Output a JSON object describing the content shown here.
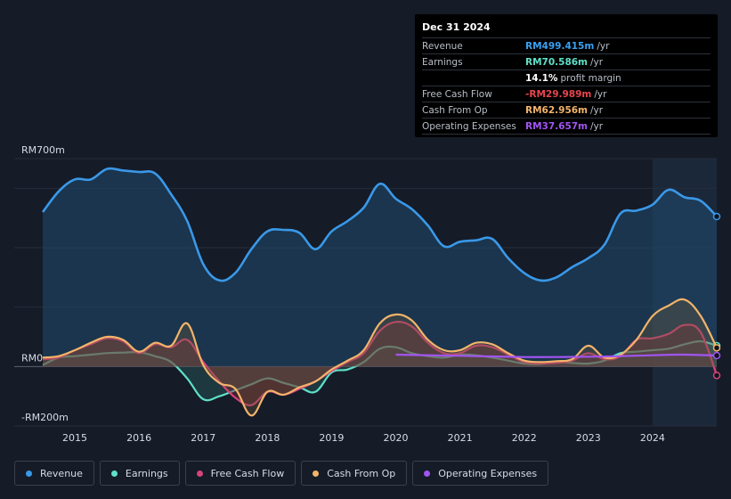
{
  "tooltip": {
    "date": "Dec 31 2024",
    "rows": [
      {
        "label": "Revenue",
        "value": "RM499.415m",
        "unit": "/yr",
        "color": "#3aa0f0"
      },
      {
        "label": "Earnings",
        "value": "RM70.586m",
        "unit": "/yr",
        "color": "#5fe0c8"
      },
      {
        "label": "",
        "value": "14.1%",
        "unit": "profit margin",
        "color": "#ffffff"
      },
      {
        "label": "Free Cash Flow",
        "value": "-RM29.989m",
        "unit": "/yr",
        "color": "#e8454f"
      },
      {
        "label": "Cash From Op",
        "value": "RM62.956m",
        "unit": "/yr",
        "color": "#f2b46a"
      },
      {
        "label": "Operating Expenses",
        "value": "RM37.657m",
        "unit": "/yr",
        "color": "#a155f0"
      }
    ]
  },
  "legend": [
    {
      "label": "Revenue",
      "color": "#3a98e8"
    },
    {
      "label": "Earnings",
      "color": "#5fe0c8"
    },
    {
      "label": "Free Cash Flow",
      "color": "#d4457a"
    },
    {
      "label": "Cash From Op",
      "color": "#f2b46a"
    },
    {
      "label": "Operating Expenses",
      "color": "#a155f0"
    }
  ],
  "chart_data": {
    "type": "area",
    "title": "",
    "ylim": [
      -200,
      700
    ],
    "y_tick_labels": [
      "RM700m",
      "RM0",
      "-RM200m"
    ],
    "y_ticks": [
      700,
      0,
      -200
    ],
    "x_tick_labels": [
      "2015",
      "2016",
      "2017",
      "2018",
      "2019",
      "2020",
      "2021",
      "2022",
      "2023",
      "2024"
    ],
    "x_ticks": [
      2015,
      2016,
      2017,
      2018,
      2019,
      2020,
      2021,
      2022,
      2023,
      2024
    ],
    "xlim": [
      2014.5,
      2025.0
    ],
    "forecast_start": 2024.0,
    "series": [
      {
        "name": "Revenue",
        "color": "#3a98e8",
        "x": [
          2014.5,
          2014.75,
          2015.0,
          2015.25,
          2015.5,
          2015.75,
          2016.0,
          2016.25,
          2016.5,
          2016.75,
          2017.0,
          2017.25,
          2017.5,
          2017.75,
          2018.0,
          2018.25,
          2018.5,
          2018.75,
          2019.0,
          2019.25,
          2019.5,
          2019.75,
          2020.0,
          2020.25,
          2020.5,
          2020.75,
          2021.0,
          2021.25,
          2021.5,
          2021.75,
          2022.0,
          2022.25,
          2022.5,
          2022.75,
          2023.0,
          2023.25,
          2023.5,
          2023.75,
          2024.0,
          2024.25,
          2024.5,
          2024.75,
          2025.0
        ],
        "values": [
          520,
          590,
          630,
          630,
          665,
          660,
          655,
          650,
          580,
          490,
          345,
          290,
          315,
          395,
          455,
          460,
          450,
          395,
          455,
          490,
          535,
          615,
          565,
          530,
          475,
          405,
          420,
          425,
          430,
          365,
          315,
          290,
          300,
          335,
          365,
          410,
          515,
          525,
          545,
          595,
          570,
          558,
          505
        ]
      },
      {
        "name": "Earnings",
        "color": "#5fe0c8",
        "x": [
          2014.5,
          2014.75,
          2015.0,
          2015.25,
          2015.5,
          2015.75,
          2016.0,
          2016.25,
          2016.5,
          2016.75,
          2017.0,
          2017.25,
          2017.5,
          2017.75,
          2018.0,
          2018.25,
          2018.5,
          2018.75,
          2019.0,
          2019.25,
          2019.5,
          2019.75,
          2020.0,
          2020.25,
          2020.5,
          2020.75,
          2021.0,
          2021.25,
          2021.5,
          2021.75,
          2022.0,
          2022.25,
          2022.5,
          2022.75,
          2023.0,
          2023.25,
          2023.5,
          2023.75,
          2024.0,
          2024.25,
          2024.5,
          2024.75,
          2025.0
        ],
        "values": [
          5,
          30,
          35,
          40,
          45,
          47,
          48,
          35,
          15,
          -40,
          -110,
          -100,
          -80,
          -60,
          -40,
          -55,
          -70,
          -85,
          -20,
          -10,
          15,
          60,
          65,
          45,
          35,
          30,
          40,
          38,
          30,
          20,
          10,
          8,
          15,
          12,
          10,
          20,
          45,
          50,
          55,
          60,
          75,
          85,
          70
        ]
      },
      {
        "name": "Free Cash Flow",
        "color": "#d4457a",
        "x": [
          2014.5,
          2014.75,
          2015.0,
          2015.25,
          2015.5,
          2015.75,
          2016.0,
          2016.25,
          2016.5,
          2016.75,
          2017.0,
          2017.25,
          2017.5,
          2017.75,
          2018.0,
          2018.25,
          2018.5,
          2018.75,
          2019.0,
          2019.25,
          2019.5,
          2019.75,
          2020.0,
          2020.25,
          2020.5,
          2020.75,
          2021.0,
          2021.25,
          2021.5,
          2021.75,
          2022.0,
          2022.25,
          2022.5,
          2022.75,
          2023.0,
          2023.25,
          2023.5,
          2023.75,
          2024.0,
          2024.25,
          2024.5,
          2024.75,
          2025.0
        ],
        "values": [
          25,
          30,
          55,
          75,
          95,
          85,
          45,
          75,
          65,
          90,
          15,
          -50,
          -105,
          -130,
          -85,
          -95,
          -75,
          -50,
          -15,
          15,
          45,
          120,
          150,
          135,
          80,
          45,
          45,
          70,
          65,
          40,
          15,
          10,
          12,
          20,
          45,
          25,
          35,
          90,
          95,
          110,
          140,
          115,
          -30
        ]
      },
      {
        "name": "Cash From Op",
        "color": "#f2b46a",
        "x": [
          2014.5,
          2014.75,
          2015.0,
          2015.25,
          2015.5,
          2015.75,
          2016.0,
          2016.25,
          2016.5,
          2016.75,
          2017.0,
          2017.25,
          2017.5,
          2017.75,
          2018.0,
          2018.25,
          2018.5,
          2018.75,
          2019.0,
          2019.25,
          2019.5,
          2019.75,
          2020.0,
          2020.25,
          2020.5,
          2020.75,
          2021.0,
          2021.25,
          2021.5,
          2021.75,
          2022.0,
          2022.25,
          2022.5,
          2022.75,
          2023.0,
          2023.25,
          2023.5,
          2023.75,
          2024.0,
          2024.25,
          2024.5,
          2024.75,
          2025.0
        ],
        "values": [
          30,
          35,
          55,
          80,
          100,
          90,
          50,
          80,
          70,
          145,
          5,
          -55,
          -75,
          -165,
          -85,
          -95,
          -70,
          -50,
          -10,
          20,
          55,
          145,
          175,
          155,
          90,
          55,
          55,
          80,
          75,
          45,
          20,
          15,
          18,
          25,
          70,
          30,
          40,
          90,
          170,
          205,
          225,
          170,
          63
        ]
      },
      {
        "name": "Operating Expenses",
        "color": "#a155f0",
        "x": [
          2020.0,
          2020.5,
          2021.0,
          2021.5,
          2022.0,
          2022.5,
          2023.0,
          2023.5,
          2024.0,
          2024.5,
          2025.0
        ],
        "values": [
          40,
          38,
          36,
          34,
          32,
          32,
          33,
          35,
          38,
          40,
          37
        ]
      }
    ]
  }
}
